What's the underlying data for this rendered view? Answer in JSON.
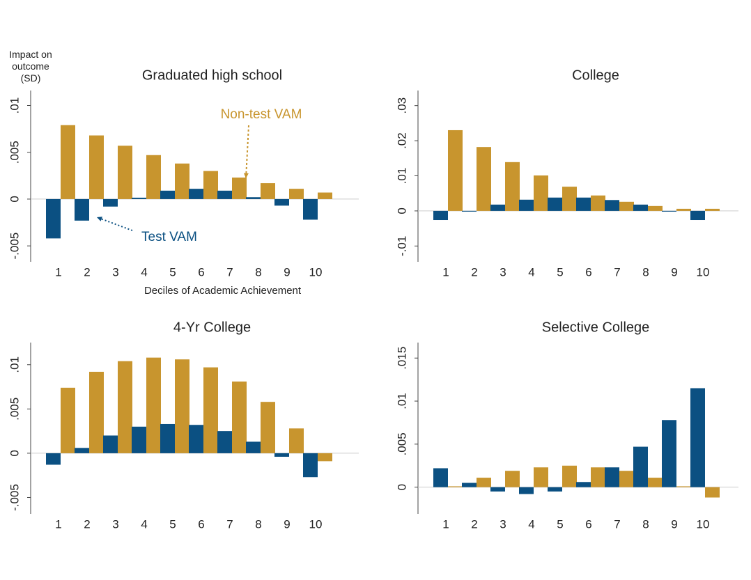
{
  "y_label": "Impact on outcome (SD)",
  "chart_data": [
    {
      "type": "bar",
      "title": "Graduated high school",
      "x_label": "Deciles of Academic Achievement",
      "categories": [
        "1",
        "2",
        "3",
        "4",
        "5",
        "6",
        "7",
        "8",
        "9",
        "10"
      ],
      "series": [
        {
          "name": "Test VAM",
          "color": "#0b5082",
          "values": [
            -0.0042,
            -0.0023,
            -0.0008,
            0.00015,
            0.0009,
            0.0011,
            0.0009,
            0.0002,
            -0.0007,
            -0.0022
          ]
        },
        {
          "name": "Non-test VAM",
          "color": "#c8952e",
          "values": [
            0.0079,
            0.0068,
            0.0057,
            0.0047,
            0.0038,
            0.003,
            0.0023,
            0.0017,
            0.0011,
            0.0007
          ]
        }
      ],
      "ylim": [
        -0.0067,
        0.0116
      ],
      "yticks": [
        {
          "value": -0.005,
          "label": "-.005"
        },
        0,
        {
          "value": 0.005,
          "label": ".005"
        },
        {
          "value": 0.01,
          "label": ".01"
        }
      ],
      "zero_line": true
    },
    {
      "type": "bar",
      "title": "College",
      "categories": [
        "1",
        "2",
        "3",
        "4",
        "5",
        "6",
        "7",
        "8",
        "9",
        "10"
      ],
      "series": [
        {
          "color": "#0b5082",
          "values": [
            -0.0026,
            0.0,
            0.0018,
            0.0032,
            0.0038,
            0.0038,
            0.0031,
            0.0018,
            -0.0002,
            -0.0026
          ]
        },
        {
          "color": "#c8952e",
          "values": [
            0.023,
            0.0182,
            0.0139,
            0.0101,
            0.0069,
            0.0044,
            0.0026,
            0.0014,
            0.0006,
            0.0006
          ]
        }
      ],
      "ylim": [
        -0.0145,
        0.0343
      ],
      "yticks": [
        {
          "value": -0.01,
          "label": "-.01"
        },
        0,
        {
          "value": 0.01,
          "label": ".01"
        },
        {
          "value": 0.02,
          "label": ".02"
        },
        {
          "value": 0.03,
          "label": ".03"
        }
      ],
      "zero_line": true
    },
    {
      "type": "bar",
      "title": "4-Yr College",
      "categories": [
        "1",
        "2",
        "3",
        "4",
        "5",
        "6",
        "7",
        "8",
        "9",
        "10"
      ],
      "series": [
        {
          "color": "#0b5082",
          "values": [
            -0.0013,
            0.0006,
            0.002,
            0.003,
            0.0033,
            0.0032,
            0.0025,
            0.0013,
            -0.0004,
            -0.0027
          ]
        },
        {
          "color": "#c8952e",
          "values": [
            0.0074,
            0.0092,
            0.0104,
            0.0108,
            0.0106,
            0.0097,
            0.0081,
            0.0058,
            0.0028,
            -0.0009
          ]
        }
      ],
      "ylim": [
        -0.00685,
        0.0125
      ],
      "yticks": [
        {
          "value": -0.005,
          "label": "-.005"
        },
        0,
        {
          "value": 0.005,
          "label": ".005"
        },
        {
          "value": 0.01,
          "label": ".01"
        }
      ],
      "zero_line": true
    },
    {
      "type": "bar",
      "title": "Selective College",
      "categories": [
        "1",
        "2",
        "3",
        "4",
        "5",
        "6",
        "7",
        "8",
        "9",
        "10"
      ],
      "series": [
        {
          "color": "#0b5082",
          "values": [
            0.0022,
            0.0005,
            -0.0005,
            -0.0008,
            -0.0005,
            0.0006,
            0.0023,
            0.0047,
            0.0078,
            0.0115
          ]
        },
        {
          "color": "#c8952e",
          "values": [
            0.0001,
            0.0011,
            0.0019,
            0.0023,
            0.0025,
            0.0023,
            0.0019,
            0.0011,
            0.0001,
            -0.0012
          ]
        }
      ],
      "ylim": [
        -0.0031,
        0.0168
      ],
      "yticks": [
        0,
        {
          "value": 0.005,
          "label": ".005"
        },
        {
          "value": 0.01,
          "label": ".01"
        },
        {
          "value": 0.015,
          "label": ".015"
        }
      ],
      "zero_line": true
    }
  ]
}
